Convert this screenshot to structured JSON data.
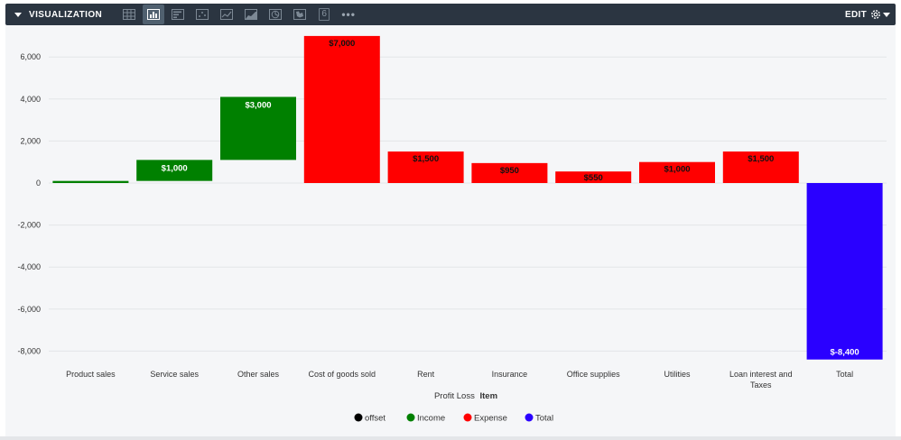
{
  "header": {
    "title": "VISUALIZATION",
    "edit_label": "EDIT",
    "tools": [
      "table-icon",
      "bar-chart-icon",
      "horizontal-bar-icon",
      "scatter-icon",
      "line-chart-icon",
      "area-chart-icon",
      "pie-chart-icon",
      "map-icon",
      "single-value-icon",
      "more-icon"
    ],
    "single_value_glyph": "6",
    "more_glyph": "•••"
  },
  "colors": {
    "offset": "#000000",
    "income": "#008000",
    "expense": "#ff0000",
    "total": "#2a00ff",
    "header_bg": "#2b3541",
    "panel_bg": "#f5f6f8"
  },
  "chart_data": {
    "type": "bar",
    "subtype": "waterfall",
    "categories": [
      "Product sales",
      "Service sales",
      "Other sales",
      "Cost of goods sold",
      "Rent",
      "Insurance",
      "Office supplies",
      "Utilities",
      "Loan interest and Taxes",
      "Total"
    ],
    "series": [
      {
        "name": "offset",
        "color": "#000000"
      },
      {
        "name": "Income",
        "color": "#008000"
      },
      {
        "name": "Expense",
        "color": "#ff0000"
      },
      {
        "name": "Total",
        "color": "#2a00ff"
      }
    ],
    "bars": [
      {
        "category": "Product sales",
        "series": "Income",
        "from": 0,
        "to": 100,
        "label": ""
      },
      {
        "category": "Service sales",
        "series": "Income",
        "from": 100,
        "to": 1100,
        "label": "$1,000"
      },
      {
        "category": "Other sales",
        "series": "Income",
        "from": 1100,
        "to": 4100,
        "label": "$3,000"
      },
      {
        "category": "Cost of goods sold",
        "series": "Expense",
        "from": 0,
        "to": 7000,
        "label": "$7,000"
      },
      {
        "category": "Rent",
        "series": "Expense",
        "from": 0,
        "to": 1500,
        "label": "$1,500"
      },
      {
        "category": "Insurance",
        "series": "Expense",
        "from": 0,
        "to": 950,
        "label": "$950"
      },
      {
        "category": "Office supplies",
        "series": "Expense",
        "from": 0,
        "to": 550,
        "label": "$550"
      },
      {
        "category": "Utilities",
        "series": "Expense",
        "from": 0,
        "to": 1000,
        "label": "$1,000"
      },
      {
        "category": "Loan interest and Taxes",
        "series": "Expense",
        "from": 0,
        "to": 1500,
        "label": "$1,500"
      },
      {
        "category": "Total",
        "series": "Total",
        "from": 0,
        "to": -8400,
        "label": "$-8,400"
      }
    ],
    "yticks": [
      6000,
      4000,
      2000,
      0,
      -2000,
      -4000,
      -6000,
      -8000
    ],
    "ytick_labels": [
      "6,000",
      "4,000",
      "2,000",
      "0",
      "-2,000",
      "-4,000",
      "-6,000",
      "-8,000"
    ],
    "ylim": [
      -8400,
      7000
    ],
    "xlabel_prefix": "Profit Loss",
    "xlabel_bold": "Item",
    "legend_position": "bottom-center",
    "grid": true
  }
}
